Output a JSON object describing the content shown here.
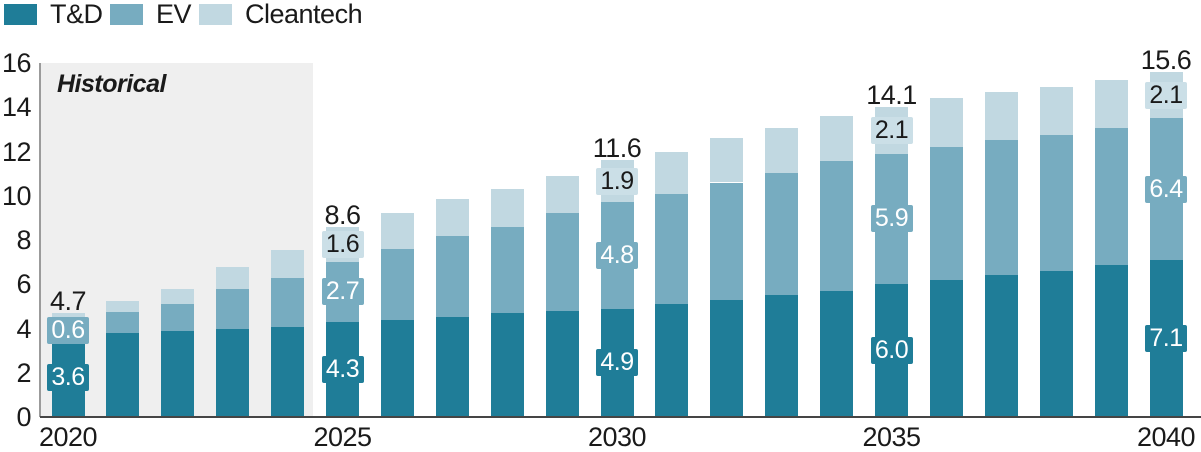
{
  "legend": {
    "items": [
      {
        "label": "T&D",
        "color": "#1f7d98"
      },
      {
        "label": "EV",
        "color": "#77acc0"
      },
      {
        "label": "Cleantech",
        "color": "#c1d8e1"
      }
    ]
  },
  "chart_data": {
    "type": "bar",
    "stacked": true,
    "title": "",
    "xlabel": "",
    "ylabel": "",
    "ylim": [
      0,
      16
    ],
    "grid": false,
    "legend_position": "top-left",
    "categories": [
      "2020",
      "2021",
      "2022",
      "2023",
      "2024",
      "2025",
      "2026",
      "2027",
      "2028",
      "2029",
      "2030",
      "2031",
      "2032",
      "2033",
      "2034",
      "2035",
      "2036",
      "2037",
      "2038",
      "2039",
      "2040"
    ],
    "series": [
      {
        "name": "T&D",
        "color": "#1f7d98",
        "values": [
          3.6,
          3.8,
          3.9,
          4.0,
          4.05,
          4.3,
          4.4,
          4.5,
          4.7,
          4.8,
          4.9,
          5.1,
          5.3,
          5.5,
          5.7,
          6.0,
          6.2,
          6.4,
          6.6,
          6.85,
          7.1
        ]
      },
      {
        "name": "EV",
        "color": "#77acc0",
        "values": [
          0.6,
          0.95,
          1.2,
          1.8,
          2.25,
          2.7,
          3.2,
          3.7,
          3.9,
          4.4,
          4.8,
          5.0,
          5.3,
          5.55,
          5.85,
          5.9,
          6.0,
          6.1,
          6.15,
          6.2,
          6.4
        ]
      },
      {
        "name": "Cleantech",
        "color": "#c1d8e1",
        "values": [
          0.5,
          0.5,
          0.7,
          1.0,
          1.25,
          1.6,
          1.6,
          1.65,
          1.7,
          1.7,
          1.9,
          1.9,
          2.0,
          2.0,
          2.05,
          2.1,
          2.2,
          2.2,
          2.15,
          2.2,
          2.1
        ]
      }
    ],
    "value_labels": [
      {
        "year": "2020",
        "total": "4.7",
        "td": "3.6",
        "ev": "0.6"
      },
      {
        "year": "2025",
        "total": "8.6",
        "td": "4.3",
        "ev": "2.7",
        "ct": "1.6"
      },
      {
        "year": "2030",
        "total": "11.6",
        "td": "4.9",
        "ev": "4.8",
        "ct": "1.9"
      },
      {
        "year": "2035",
        "total": "14.1",
        "td": "6.0",
        "ev": "5.9",
        "ct": "2.1"
      },
      {
        "year": "2040",
        "total": "15.6",
        "td": "7.1",
        "ev": "6.4",
        "ct": "2.1"
      }
    ],
    "y_ticks": [
      "0",
      "2",
      "4",
      "6",
      "8",
      "10",
      "12",
      "14",
      "16"
    ],
    "x_tick_labels": [
      "2020",
      "2025",
      "2030",
      "2035",
      "2040"
    ],
    "historical": {
      "label": "Historical",
      "covers": "2020-2024",
      "background": "#efefef"
    },
    "badge_colors": {
      "td": "#1f7d98",
      "ev": "#77acc0",
      "ct": "#cbdfe7"
    },
    "badge_text_colors": {
      "td": "#ffffff",
      "ev": "#ffffff",
      "ct": "#1a1a1a"
    }
  }
}
